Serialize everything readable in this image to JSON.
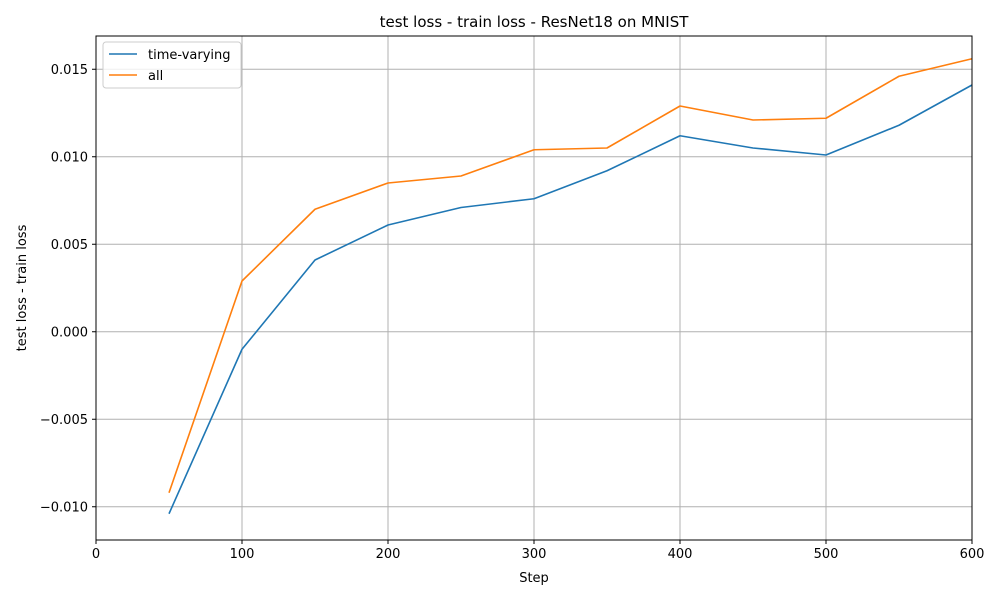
{
  "chart_data": {
    "type": "line",
    "title": "test loss - train loss - ResNet18 on MNIST",
    "xlabel": "Step",
    "ylabel": "test loss - train loss",
    "xlim": [
      0,
      600
    ],
    "ylim": [
      -0.0119,
      0.0169
    ],
    "xticks": [
      0,
      100,
      200,
      300,
      400,
      500,
      600
    ],
    "xtick_labels": [
      "0",
      "100",
      "200",
      "300",
      "400",
      "500",
      "600"
    ],
    "yticks": [
      -0.01,
      -0.005,
      0.0,
      0.005,
      0.01,
      0.015
    ],
    "ytick_labels": [
      "−0.010",
      "−0.005",
      "0.000",
      "0.005",
      "0.010",
      "0.015"
    ],
    "grid": true,
    "legend_position": "top-left",
    "x": [
      50,
      100,
      150,
      200,
      250,
      300,
      350,
      400,
      450,
      500,
      550,
      600
    ],
    "series": [
      {
        "name": "time-varying",
        "color": "#1f77b4",
        "values": [
          -0.0104,
          -0.001,
          0.0041,
          0.0061,
          0.0071,
          0.0076,
          0.0092,
          0.0112,
          0.0105,
          0.0101,
          0.0118,
          0.0141
        ]
      },
      {
        "name": "all",
        "color": "#ff7f0e",
        "values": [
          -0.0092,
          0.0029,
          0.007,
          0.0085,
          0.0089,
          0.0104,
          0.0105,
          0.0129,
          0.0121,
          0.0122,
          0.0146,
          0.0156
        ]
      }
    ]
  }
}
